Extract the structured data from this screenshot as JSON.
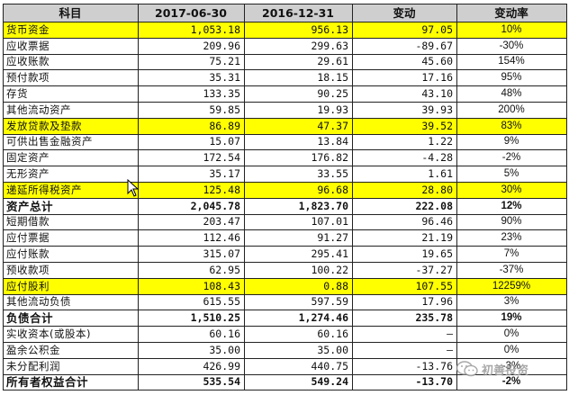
{
  "headers": [
    "科目",
    "2017-06-30",
    "2016-12-31",
    "变动",
    "变动率"
  ],
  "rows": [
    {
      "name": "货币资金",
      "v1": "1,053.18",
      "v2": "956.13",
      "change": "97.05",
      "rate": "10%",
      "highlight": true,
      "total": false
    },
    {
      "name": "应收票据",
      "v1": "209.96",
      "v2": "299.63",
      "change": "-89.67",
      "rate": "-30%",
      "highlight": false,
      "total": false
    },
    {
      "name": "应收账款",
      "v1": "75.21",
      "v2": "29.61",
      "change": "45.60",
      "rate": "154%",
      "highlight": false,
      "total": false
    },
    {
      "name": "预付款项",
      "v1": "35.31",
      "v2": "18.15",
      "change": "17.16",
      "rate": "95%",
      "highlight": false,
      "total": false
    },
    {
      "name": "存货",
      "v1": "133.35",
      "v2": "90.25",
      "change": "43.10",
      "rate": "48%",
      "highlight": false,
      "total": false
    },
    {
      "name": "其他流动资产",
      "v1": "59.85",
      "v2": "19.93",
      "change": "39.93",
      "rate": "200%",
      "highlight": false,
      "total": false
    },
    {
      "name": "发放贷款及垫款",
      "v1": "86.89",
      "v2": "47.37",
      "change": "39.52",
      "rate": "83%",
      "highlight": true,
      "total": false
    },
    {
      "name": "可供出售金融资产",
      "v1": "15.07",
      "v2": "13.84",
      "change": "1.22",
      "rate": "9%",
      "highlight": false,
      "total": false
    },
    {
      "name": "固定资产",
      "v1": "172.54",
      "v2": "176.82",
      "change": "-4.28",
      "rate": "-2%",
      "highlight": false,
      "total": false
    },
    {
      "name": "无形资产",
      "v1": "35.17",
      "v2": "33.55",
      "change": "1.61",
      "rate": "5%",
      "highlight": false,
      "total": false
    },
    {
      "name": "递延所得税资产",
      "v1": "125.48",
      "v2": "96.68",
      "change": "28.80",
      "rate": "30%",
      "highlight": true,
      "total": false
    },
    {
      "name": "资产总计",
      "v1": "2,045.78",
      "v2": "1,823.70",
      "change": "222.08",
      "rate": "12%",
      "highlight": false,
      "total": true
    },
    {
      "name": "短期借款",
      "v1": "203.47",
      "v2": "107.01",
      "change": "96.46",
      "rate": "90%",
      "highlight": false,
      "total": false
    },
    {
      "name": "应付票据",
      "v1": "112.46",
      "v2": "91.27",
      "change": "21.19",
      "rate": "23%",
      "highlight": false,
      "total": false
    },
    {
      "name": "应付账款",
      "v1": "315.07",
      "v2": "295.41",
      "change": "19.65",
      "rate": "7%",
      "highlight": false,
      "total": false
    },
    {
      "name": "预收款项",
      "v1": "62.95",
      "v2": "100.22",
      "change": "-37.27",
      "rate": "-37%",
      "highlight": false,
      "total": false
    },
    {
      "name": "应付股利",
      "v1": "108.43",
      "v2": "0.88",
      "change": "107.55",
      "rate": "12259%",
      "highlight": true,
      "total": false
    },
    {
      "name": "其他流动负债",
      "v1": "615.55",
      "v2": "597.59",
      "change": "17.96",
      "rate": "3%",
      "highlight": false,
      "total": false
    },
    {
      "name": "负债合计",
      "v1": "1,510.25",
      "v2": "1,274.46",
      "change": "235.78",
      "rate": "19%",
      "highlight": false,
      "total": true
    },
    {
      "name": "实收资本(或股本)",
      "v1": "60.16",
      "v2": "60.16",
      "change": "–",
      "rate": "0%",
      "highlight": false,
      "total": false
    },
    {
      "name": "盈余公积金",
      "v1": "35.00",
      "v2": "35.00",
      "change": "–",
      "rate": "0%",
      "highlight": false,
      "total": false
    },
    {
      "name": "未分配利润",
      "v1": "426.99",
      "v2": "440.75",
      "change": "-13.76",
      "rate": "-3%",
      "highlight": false,
      "total": false
    },
    {
      "name": "所有者权益合计",
      "v1": "535.54",
      "v2": "549.24",
      "change": "-13.70",
      "rate": "-2%",
      "highlight": false,
      "total": true
    }
  ],
  "watermark": {
    "text": "初善投资",
    "icon": "wechat-icon"
  },
  "colors": {
    "highlight": "#ffff00",
    "header_bg": "#cfcfcf"
  }
}
